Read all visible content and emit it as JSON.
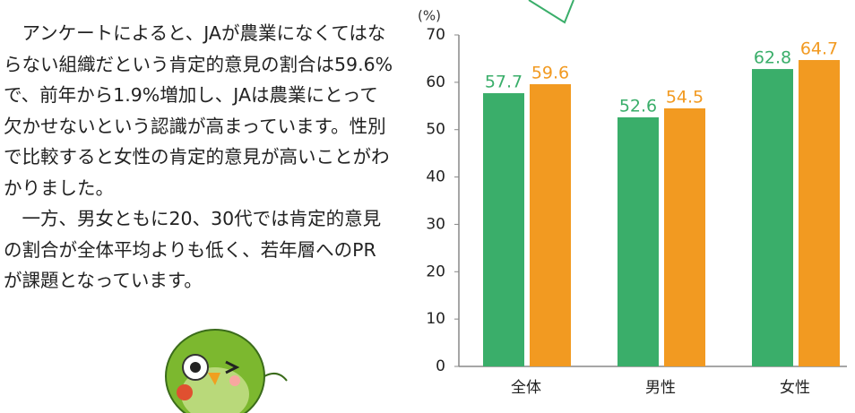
{
  "text": {
    "paragraphs": [
      "アンケートによると、JAが農業になくてはならない組織だという肯定的意見の割合は59.6%で、前年から1.9%増加し、JAは農業にとって欠かせないという認識が高まっています。性別で比較すると女性の肯定的意見が高いことがわかりました。",
      "一方、男女ともに20、30代では肯定的意見の割合が全体平均よりも低く、若年層へのPRが課題となっています。"
    ]
  },
  "chart_data": {
    "type": "bar",
    "y_label": "(%)",
    "categories": [
      "全体",
      "男性",
      "女性"
    ],
    "series": [
      {
        "color": "#3aae6a",
        "values": [
          57.7,
          52.6,
          62.8
        ]
      },
      {
        "color": "#f29a21",
        "values": [
          59.6,
          54.5,
          64.7
        ]
      }
    ],
    "ylim": [
      0,
      70
    ],
    "yticks": [
      0,
      10,
      20,
      30,
      40,
      50,
      60,
      70
    ]
  }
}
